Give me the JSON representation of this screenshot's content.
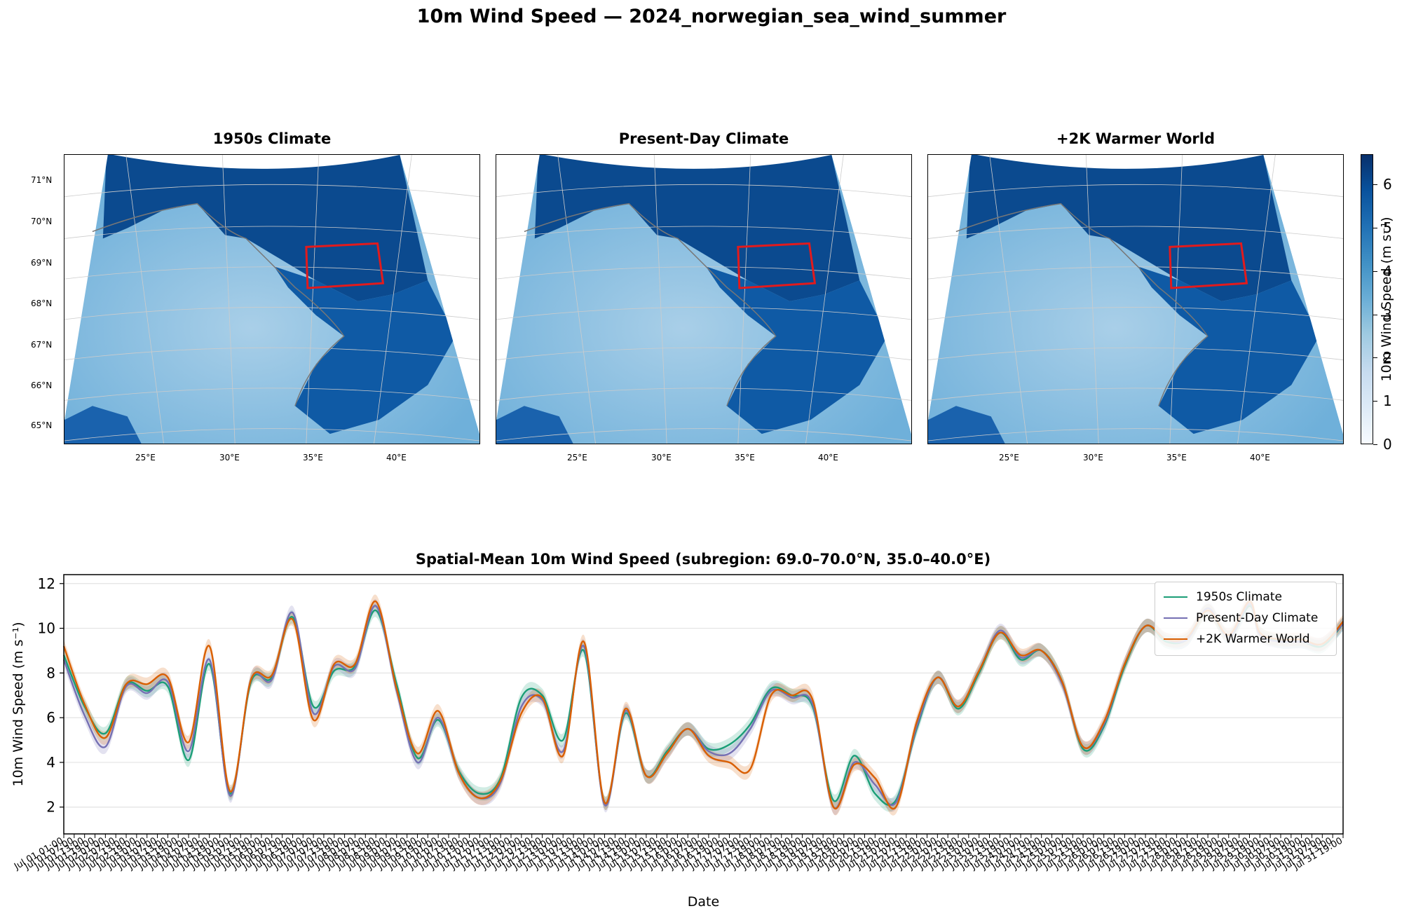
{
  "figure": {
    "suptitle": "10m Wind Speed — 2024_norwegian_sea_wind_summer"
  },
  "maps": {
    "panels": [
      {
        "title": "1950s Climate"
      },
      {
        "title": "Present-Day Climate"
      },
      {
        "title": "+2K Warmer World"
      }
    ],
    "lat_labels": [
      "71°N",
      "70°N",
      "69°N",
      "68°N",
      "67°N",
      "66°N",
      "65°N"
    ],
    "lon_labels": [
      "25°E",
      "30°E",
      "35°E",
      "40°E"
    ],
    "subregion_box_color": "#e31a1c",
    "colorbar": {
      "label": "10m Wind Speed (m s⁻¹)",
      "ticks": [
        "0",
        "1",
        "2",
        "3",
        "4",
        "5",
        "6"
      ],
      "range": [
        0,
        6.7
      ],
      "colormap": "Blues"
    }
  },
  "chart_data": {
    "type": "line",
    "title": "Spatial-Mean 10m Wind Speed (subregion: 69.0–70.0°N, 35.0–40.0°E)",
    "xlabel": "Date",
    "ylabel": "10m Wind Speed (m s⁻¹)",
    "ylim": [
      0.8,
      12.4
    ],
    "yticks": [
      "2",
      "4",
      "6",
      "8",
      "10",
      "12"
    ],
    "x_first_label": "Jul 01 01:00",
    "x_last_label": "Jul 31 19:00",
    "grid": "horizontal",
    "legend": "top-right",
    "x_hours": [
      0,
      12,
      24,
      36,
      48,
      60,
      72,
      84,
      96,
      108,
      120,
      132,
      144,
      156,
      168,
      180,
      192,
      204,
      216,
      228,
      240,
      252,
      264,
      276,
      288,
      300,
      312,
      324,
      336,
      348,
      360,
      372,
      384,
      396,
      408,
      420,
      432,
      444,
      456,
      468,
      480,
      492,
      504,
      516,
      528,
      540,
      552,
      564,
      576,
      588,
      600,
      612,
      624,
      636,
      648,
      660,
      672,
      684,
      690,
      702,
      714,
      726,
      738
    ],
    "series": [
      {
        "name": "1950s Climate",
        "color": "#1b9e77",
        "values": [
          8.8,
          6.5,
          5.3,
          7.5,
          7.2,
          7.4,
          4.1,
          8.4,
          2.6,
          7.6,
          7.8,
          10.5,
          6.5,
          8.1,
          8.3,
          10.8,
          7.5,
          4.2,
          5.9,
          3.6,
          2.6,
          3.3,
          6.9,
          7.0,
          5.0,
          9.0,
          2.2,
          6.2,
          3.4,
          4.5,
          5.5,
          4.6,
          4.8,
          5.7,
          7.3,
          7.0,
          6.5,
          2.3,
          4.3,
          2.6,
          2.3,
          5.5,
          7.8,
          6.4,
          8.0,
          9.8,
          8.6,
          9.0,
          7.6,
          4.6,
          5.6,
          8.3,
          10.1,
          9.4,
          9.5,
          10.8,
          9.6,
          11.0,
          9.8,
          9.4,
          9.4,
          9.2,
          10.2
        ]
      },
      {
        "name": "Present-Day Climate",
        "color": "#7570b3",
        "values": [
          8.6,
          6.1,
          4.7,
          7.4,
          7.1,
          7.6,
          4.5,
          8.6,
          2.5,
          7.7,
          7.7,
          10.7,
          6.2,
          8.3,
          8.2,
          11.0,
          7.2,
          4.0,
          6.0,
          3.5,
          2.4,
          3.1,
          6.5,
          6.8,
          4.5,
          9.2,
          2.1,
          6.3,
          3.4,
          4.4,
          5.5,
          4.5,
          4.4,
          5.5,
          7.2,
          6.9,
          6.6,
          2.0,
          4.0,
          3.0,
          2.2,
          5.6,
          7.8,
          6.5,
          8.1,
          9.9,
          8.7,
          9.0,
          7.5,
          4.7,
          5.7,
          8.4,
          10.1,
          9.5,
          9.5,
          10.9,
          9.6,
          11.1,
          9.7,
          9.4,
          9.4,
          9.3,
          10.2
        ]
      },
      {
        "name": "+2K Warmer World",
        "color": "#d95f02",
        "values": [
          9.2,
          6.6,
          5.1,
          7.5,
          7.5,
          7.8,
          4.9,
          9.2,
          2.7,
          7.7,
          7.9,
          10.4,
          5.9,
          8.4,
          8.4,
          11.2,
          7.3,
          4.4,
          6.3,
          3.5,
          2.4,
          3.2,
          6.2,
          6.9,
          4.3,
          9.4,
          2.2,
          6.4,
          3.4,
          4.4,
          5.5,
          4.3,
          4.0,
          3.7,
          7.0,
          7.0,
          6.8,
          2.0,
          3.9,
          3.3,
          2.0,
          5.8,
          7.8,
          6.5,
          8.1,
          9.8,
          8.8,
          9.0,
          7.6,
          4.7,
          5.8,
          8.4,
          10.1,
          9.5,
          9.6,
          10.8,
          9.7,
          11.2,
          9.8,
          9.5,
          9.5,
          9.3,
          10.3
        ]
      }
    ]
  }
}
